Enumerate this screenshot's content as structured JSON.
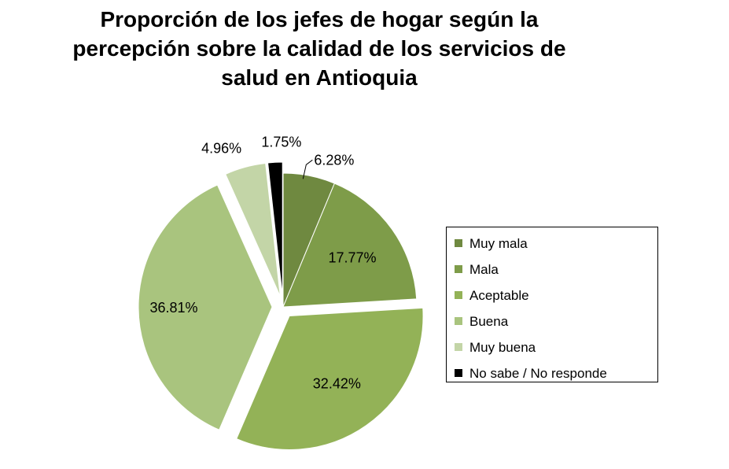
{
  "chart_data": {
    "type": "pie",
    "title": [
      "Proporción de los jefes de hogar según la",
      "percepción  sobre la calidad de los servicios de",
      "salud en Antioquia"
    ],
    "categories": [
      "Muy mala",
      "Mala",
      "Aceptable",
      "Buena",
      "Muy buena",
      "No sabe / No responde"
    ],
    "values": [
      6.28,
      17.77,
      32.42,
      36.81,
      4.96,
      1.75
    ],
    "labels": [
      "6.28%",
      "17.77%",
      "32.42%",
      "36.81%",
      "4.96%",
      "1.75%"
    ],
    "colors": [
      "#6f8940",
      "#7e9c49",
      "#93b257",
      "#a9c47e",
      "#c3d5a7",
      "#000000"
    ],
    "legend_position": "right",
    "exploded": true
  }
}
